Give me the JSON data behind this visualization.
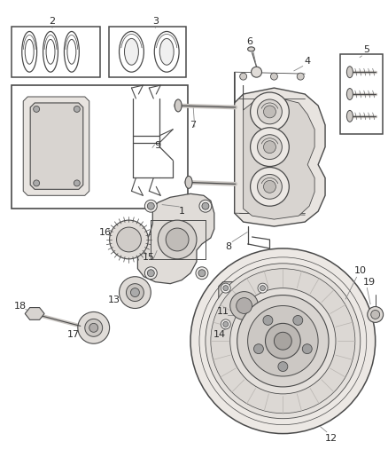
{
  "bg_color": "#ffffff",
  "line_color": "#4a4a4a",
  "text_color": "#2a2a2a",
  "fig_width": 4.38,
  "fig_height": 5.33,
  "dpi": 100
}
